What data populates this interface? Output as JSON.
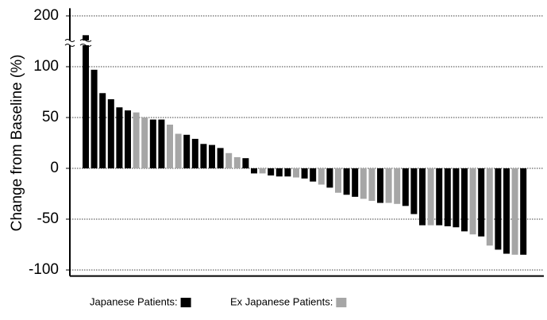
{
  "chart_data": {
    "type": "bar",
    "y_label": "Change from Baseline (%)",
    "ylim": [
      -106,
      215
    ],
    "yticks": [
      200,
      100,
      50,
      0,
      -50,
      -100
    ],
    "axis_break": true,
    "grid": true,
    "series": [
      {
        "name": "Japanese Patients:",
        "color": "#000000",
        "values": [
          162,
          97,
          74,
          68,
          60,
          57,
          null,
          null,
          48,
          48,
          null,
          null,
          33,
          29,
          24,
          23,
          20,
          null,
          null,
          10,
          -5,
          null,
          -7,
          -8,
          -8,
          null,
          -10,
          -13,
          null,
          -19,
          null,
          -26,
          -28,
          null,
          null,
          -34,
          null,
          null,
          -37,
          -45,
          -56,
          null,
          -56,
          -57,
          -58,
          -62,
          null,
          -67,
          null,
          -80,
          -84,
          null,
          -85
        ]
      },
      {
        "name": "Ex Japanese Patients:",
        "color": "#a6a6a6",
        "values": [
          null,
          null,
          null,
          null,
          null,
          null,
          55,
          50,
          null,
          null,
          43,
          34,
          null,
          null,
          null,
          null,
          null,
          15,
          11,
          null,
          null,
          -5,
          null,
          null,
          null,
          -9,
          null,
          null,
          -16,
          null,
          -24,
          null,
          null,
          -30,
          -32,
          null,
          -34,
          -35,
          null,
          null,
          null,
          -56,
          null,
          null,
          null,
          null,
          -65,
          null,
          -76,
          null,
          null,
          -85,
          null
        ]
      }
    ]
  }
}
